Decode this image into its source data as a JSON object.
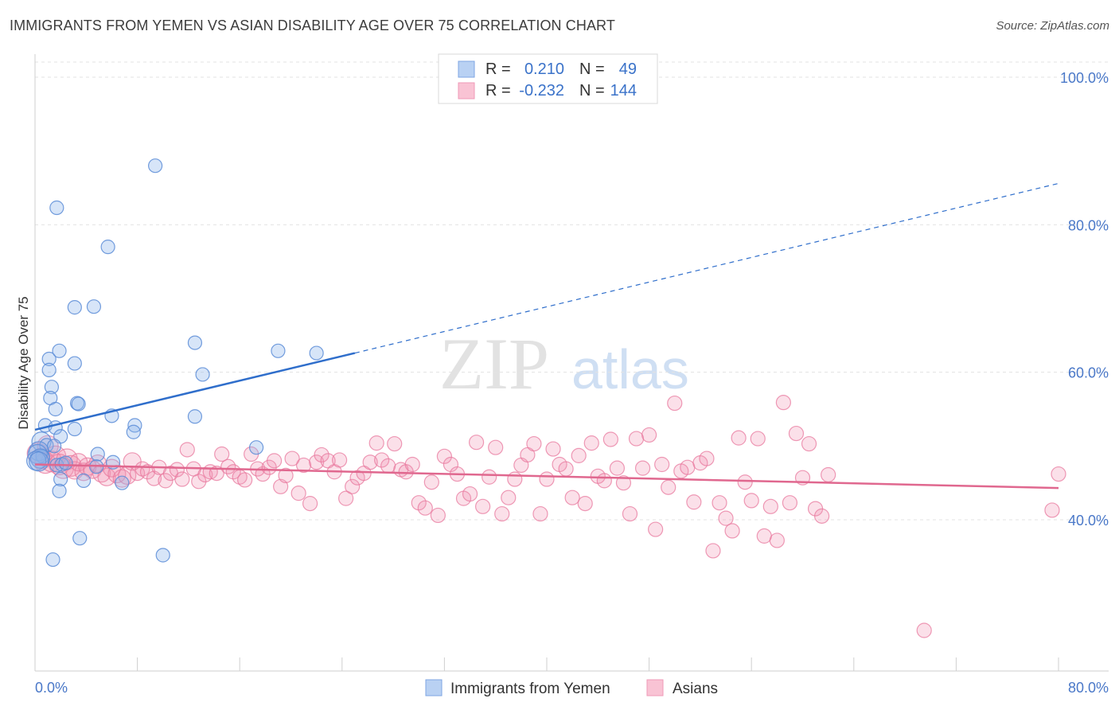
{
  "title": "IMMIGRANTS FROM YEMEN VS ASIAN DISABILITY AGE OVER 75 CORRELATION CHART",
  "source": "Source: ZipAtlas.com",
  "watermark": {
    "zip": "ZIP",
    "atlas": "atlas"
  },
  "legend": {
    "rows": [
      {
        "r_label": "R =",
        "r_value": "0.210",
        "n_label": "N =",
        "n_value": "49"
      },
      {
        "r_label": "R =",
        "r_value": "-0.232",
        "n_label": "N =",
        "n_value": "144"
      }
    ]
  },
  "bottom_legend": [
    "Immigrants from Yemen",
    "Asians"
  ],
  "chart_data": {
    "type": "scatter",
    "xlabel": "",
    "ylabel": "Disability Age Over 75",
    "xlim": [
      0,
      80
    ],
    "ylim": [
      20,
      102
    ],
    "x_ticks": [
      "0.0%",
      "80.0%"
    ],
    "y_ticks": [
      {
        "value": 100,
        "label": "100.0%"
      },
      {
        "value": 80,
        "label": "80.0%"
      },
      {
        "value": 60,
        "label": "60.0%"
      },
      {
        "value": 40,
        "label": "40.0%"
      }
    ],
    "grid": true,
    "colors": {
      "yemen": "#6f9fe0",
      "asians": "#f28fb0",
      "yemen_line": "#2f6ecb",
      "asians_line": "#e0688f"
    },
    "series": [
      {
        "name": "Immigrants from Yemen",
        "r": 0.21,
        "n": 49,
        "trend": {
          "x0": 0,
          "y0": 52.2,
          "x1": 25,
          "y1": 62.6,
          "x_end": 80,
          "y_end": 85.6
        },
        "points": [
          [
            9.4,
            88.0
          ],
          [
            1.7,
            82.3
          ],
          [
            5.7,
            77.0
          ],
          [
            3.1,
            68.8
          ],
          [
            4.6,
            68.9
          ],
          [
            12.5,
            64.0
          ],
          [
            19.0,
            62.9
          ],
          [
            22.0,
            62.6
          ],
          [
            1.1,
            61.8
          ],
          [
            1.9,
            62.9
          ],
          [
            3.1,
            61.2
          ],
          [
            1.1,
            60.3
          ],
          [
            13.1,
            59.7
          ],
          [
            1.3,
            58.0
          ],
          [
            1.2,
            56.5
          ],
          [
            3.3,
            55.8
          ],
          [
            3.4,
            55.7
          ],
          [
            1.6,
            55.0
          ],
          [
            6.0,
            54.1
          ],
          [
            12.5,
            54.0
          ],
          [
            0.8,
            52.8
          ],
          [
            1.6,
            52.5
          ],
          [
            7.8,
            52.8
          ],
          [
            3.1,
            52.3
          ],
          [
            7.7,
            51.9
          ],
          [
            2.0,
            51.3
          ],
          [
            0.5,
            50.6
          ],
          [
            0.9,
            50.1
          ],
          [
            1.5,
            50.0
          ],
          [
            17.3,
            49.8
          ],
          [
            0.3,
            49.3
          ],
          [
            4.9,
            48.9
          ],
          [
            0.6,
            48.6
          ],
          [
            0.2,
            48.9
          ],
          [
            0.4,
            48.3
          ],
          [
            1.7,
            47.4
          ],
          [
            2.1,
            47.5
          ],
          [
            2.4,
            47.7
          ],
          [
            4.8,
            47.2
          ],
          [
            6.1,
            47.8
          ],
          [
            2.0,
            45.5
          ],
          [
            3.8,
            45.3
          ],
          [
            6.8,
            45.0
          ],
          [
            1.9,
            43.9
          ],
          [
            3.5,
            37.5
          ],
          [
            1.4,
            34.6
          ],
          [
            10.0,
            35.2
          ],
          [
            0.1,
            48.0
          ],
          [
            0.3,
            47.9
          ]
        ]
      },
      {
        "name": "Asians",
        "r": -0.232,
        "n": 144,
        "trend": {
          "x0": 0,
          "y0": 47.5,
          "x1": 80,
          "y1": 44.3
        },
        "points": [
          [
            0.2,
            49.0
          ],
          [
            0.5,
            48.3
          ],
          [
            0.8,
            47.7
          ],
          [
            1.0,
            50.0
          ],
          [
            1.3,
            47.9
          ],
          [
            1.6,
            48.6
          ],
          [
            1.9,
            47.5
          ],
          [
            2.2,
            47.0
          ],
          [
            2.5,
            48.2
          ],
          [
            2.8,
            47.3
          ],
          [
            3.1,
            46.7
          ],
          [
            3.4,
            47.8
          ],
          [
            3.8,
            46.5
          ],
          [
            4.1,
            47.2
          ],
          [
            4.5,
            46.8
          ],
          [
            4.9,
            47.6
          ],
          [
            5.2,
            46.3
          ],
          [
            5.6,
            45.8
          ],
          [
            6.0,
            47.0
          ],
          [
            6.4,
            46.2
          ],
          [
            6.8,
            45.6
          ],
          [
            7.2,
            46.0
          ],
          [
            7.6,
            47.9
          ],
          [
            8.0,
            46.3
          ],
          [
            8.4,
            46.9
          ],
          [
            8.8,
            46.5
          ],
          [
            9.3,
            45.6
          ],
          [
            9.7,
            47.1
          ],
          [
            10.2,
            45.3
          ],
          [
            10.6,
            46.3
          ],
          [
            11.1,
            46.8
          ],
          [
            11.5,
            45.5
          ],
          [
            11.9,
            49.5
          ],
          [
            12.4,
            46.9
          ],
          [
            12.8,
            45.2
          ],
          [
            13.3,
            46.1
          ],
          [
            13.7,
            46.5
          ],
          [
            14.2,
            46.3
          ],
          [
            14.6,
            48.9
          ],
          [
            15.1,
            47.2
          ],
          [
            15.5,
            46.5
          ],
          [
            16.0,
            45.8
          ],
          [
            16.4,
            45.4
          ],
          [
            16.9,
            48.9
          ],
          [
            17.4,
            46.9
          ],
          [
            17.8,
            46.2
          ],
          [
            18.3,
            47.1
          ],
          [
            18.7,
            48.0
          ],
          [
            19.2,
            44.5
          ],
          [
            19.6,
            46.0
          ],
          [
            20.1,
            48.3
          ],
          [
            20.6,
            43.6
          ],
          [
            21.0,
            47.4
          ],
          [
            21.5,
            42.2
          ],
          [
            22.0,
            47.8
          ],
          [
            22.4,
            48.8
          ],
          [
            22.9,
            48.0
          ],
          [
            23.4,
            46.5
          ],
          [
            23.8,
            48.1
          ],
          [
            24.3,
            42.9
          ],
          [
            24.8,
            44.5
          ],
          [
            25.2,
            45.7
          ],
          [
            25.7,
            46.3
          ],
          [
            26.2,
            47.8
          ],
          [
            26.7,
            50.4
          ],
          [
            27.1,
            48.1
          ],
          [
            27.6,
            47.3
          ],
          [
            28.1,
            50.3
          ],
          [
            28.6,
            46.8
          ],
          [
            29.0,
            46.5
          ],
          [
            29.5,
            47.5
          ],
          [
            30.0,
            42.3
          ],
          [
            30.5,
            41.6
          ],
          [
            31.0,
            45.1
          ],
          [
            31.5,
            40.6
          ],
          [
            32.0,
            48.6
          ],
          [
            32.5,
            47.5
          ],
          [
            33.0,
            46.2
          ],
          [
            33.5,
            42.9
          ],
          [
            34.0,
            43.5
          ],
          [
            34.5,
            50.5
          ],
          [
            35.0,
            41.8
          ],
          [
            35.5,
            45.8
          ],
          [
            36.0,
            49.8
          ],
          [
            36.5,
            40.8
          ],
          [
            37.0,
            43.0
          ],
          [
            37.5,
            45.5
          ],
          [
            38.0,
            47.4
          ],
          [
            38.5,
            48.8
          ],
          [
            39.0,
            50.3
          ],
          [
            39.5,
            40.8
          ],
          [
            40.0,
            45.5
          ],
          [
            40.5,
            49.6
          ],
          [
            41.0,
            47.5
          ],
          [
            41.5,
            46.9
          ],
          [
            42.0,
            43.0
          ],
          [
            42.5,
            48.7
          ],
          [
            43.0,
            42.2
          ],
          [
            43.5,
            50.4
          ],
          [
            44.0,
            45.9
          ],
          [
            44.5,
            45.3
          ],
          [
            45.0,
            50.9
          ],
          [
            45.5,
            47.0
          ],
          [
            46.0,
            45.0
          ],
          [
            46.5,
            40.8
          ],
          [
            47.0,
            51.0
          ],
          [
            47.5,
            47.0
          ],
          [
            48.0,
            51.5
          ],
          [
            48.5,
            38.7
          ],
          [
            49.0,
            47.5
          ],
          [
            49.5,
            44.4
          ],
          [
            50.0,
            55.8
          ],
          [
            50.5,
            46.6
          ],
          [
            51.0,
            47.1
          ],
          [
            51.5,
            42.4
          ],
          [
            52.0,
            47.7
          ],
          [
            52.5,
            48.3
          ],
          [
            53.0,
            35.8
          ],
          [
            53.5,
            42.3
          ],
          [
            54.0,
            40.2
          ],
          [
            54.5,
            38.5
          ],
          [
            55.0,
            51.1
          ],
          [
            55.5,
            45.1
          ],
          [
            56.0,
            42.6
          ],
          [
            56.5,
            51.0
          ],
          [
            57.0,
            37.8
          ],
          [
            57.5,
            41.8
          ],
          [
            58.0,
            37.2
          ],
          [
            58.5,
            55.9
          ],
          [
            59.0,
            42.3
          ],
          [
            59.5,
            51.7
          ],
          [
            60.0,
            45.7
          ],
          [
            60.5,
            50.3
          ],
          [
            61.0,
            41.5
          ],
          [
            61.5,
            40.5
          ],
          [
            62.0,
            46.1
          ],
          [
            69.5,
            25.0
          ],
          [
            79.5,
            41.3
          ],
          [
            80.0,
            46.2
          ]
        ]
      }
    ]
  }
}
